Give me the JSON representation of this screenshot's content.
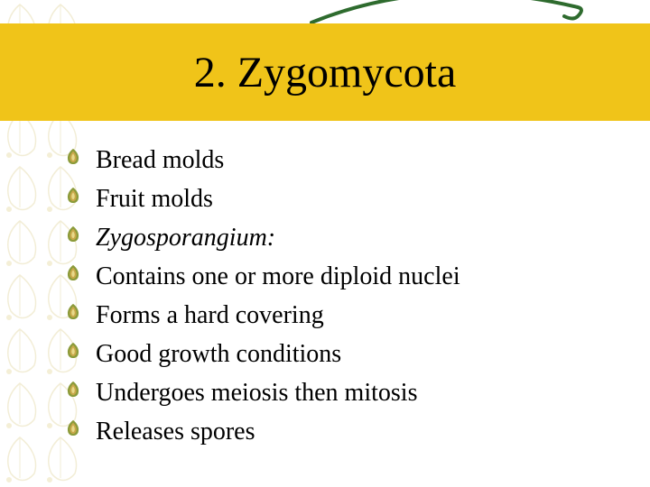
{
  "title": "2. Zygomycota",
  "title_band_color": "#f0c419",
  "title_fontsize": 48,
  "swoosh_color": "#2e6b2e",
  "background_color": "#ffffff",
  "pattern_color": "#d9c97a",
  "bullet_colors": {
    "outer": "#8b9b3a",
    "mid": "#c9a84a",
    "inner": "#e8d98a"
  },
  "items": [
    {
      "text": "Bread molds",
      "italic": false
    },
    {
      "text": "Fruit molds",
      "italic": false
    },
    {
      "text": "Zygosporangium:",
      "italic": true
    },
    {
      "text": "Contains one or more diploid nuclei",
      "italic": false
    },
    {
      "text": "Forms a hard covering",
      "italic": false
    },
    {
      "text": "Good growth conditions",
      "italic": false
    },
    {
      "text": "Undergoes meiosis then mitosis",
      "italic": false
    },
    {
      "text": "Releases spores",
      "italic": false
    }
  ],
  "item_fontsize": 28
}
